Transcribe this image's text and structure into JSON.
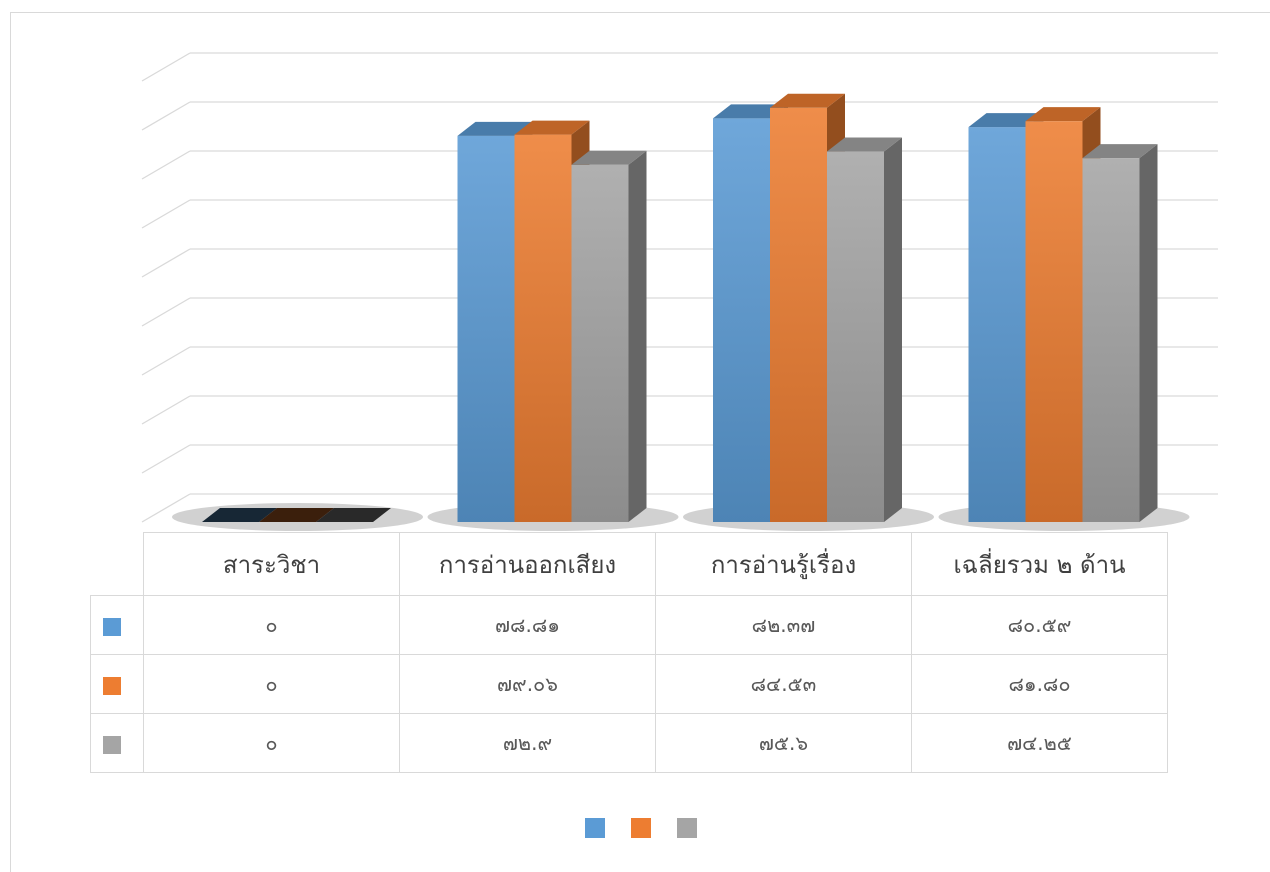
{
  "chart_data": {
    "type": "bar",
    "style": "3d-clustered-column",
    "categories": [
      "สาระวิชา",
      "การอ่านออกเสียง",
      "การอ่านรู้เรื่อง",
      "เฉลี่ยรวม ๒ ด้าน"
    ],
    "series": [
      {
        "name": "",
        "color": "#5b9bd5",
        "values": [
          0,
          78.81,
          82.37,
          80.59
        ],
        "labels": [
          "๐",
          "๗๘.๘๑",
          "๘๒.๓๗",
          "๘๐.๕๙"
        ]
      },
      {
        "name": "",
        "color": "#ed7d31",
        "values": [
          0,
          79.06,
          84.53,
          81.8
        ],
        "labels": [
          "๐",
          "๗๙.๐๖",
          "๘๔.๕๓",
          "๘๑.๘๐"
        ]
      },
      {
        "name": "",
        "color": "#a5a5a5",
        "values": [
          0,
          72.9,
          75.6,
          74.25
        ],
        "labels": [
          "๐",
          "๗๒.๙",
          "๗๕.๖",
          "๗๔.๒๕"
        ]
      }
    ],
    "ylim": [
      0,
      90
    ],
    "grid": true,
    "legend": "bottom",
    "data_table": true,
    "title": "",
    "xlabel": "",
    "ylabel": ""
  }
}
